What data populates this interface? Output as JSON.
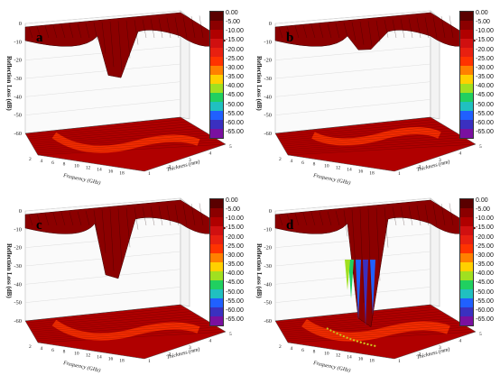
{
  "colorbar": {
    "ticks": [
      "0.00",
      "-5.00",
      "-10.00",
      "-15.00",
      "-20.00",
      "-25.00",
      "-30.00",
      "-35.00",
      "-40.00",
      "-45.00",
      "-50.00",
      "-55.00",
      "-60.00",
      "-65.00"
    ],
    "colors": [
      "#5a0000",
      "#8b0000",
      "#b00000",
      "#d01010",
      "#e82010",
      "#ff3300",
      "#ff8000",
      "#ffd000",
      "#a0e020",
      "#20d060",
      "#20c0c0",
      "#2060ff",
      "#3a30c0",
      "#7a10a0"
    ]
  },
  "zaxis_label": "Reflection Loss (dB)",
  "zaxis_ticks": [
    "0",
    "-10",
    "-20",
    "-30",
    "-40",
    "-50",
    "-60"
  ],
  "xaxis_label": "Frequency (GHz)",
  "yaxis_label": "Thickness (mm)",
  "freq_ticks": [
    "2",
    "4",
    "6",
    "8",
    "10",
    "12",
    "14",
    "16",
    "18"
  ],
  "thick_ticks": [
    "1",
    "2",
    "3",
    "4",
    "5"
  ],
  "chart_data": [
    {
      "type": "surface3d",
      "panel": "a",
      "zlabel": "Reflection Loss (dB)",
      "xlabel": "Frequency (GHz)",
      "ylabel": "Thickness (mm)",
      "zlim": [
        -65,
        0
      ],
      "min_rl": -25,
      "colorbar_range": [
        -65,
        0
      ]
    },
    {
      "type": "surface3d",
      "panel": "b",
      "zlabel": "Reflection Loss (dB)",
      "xlabel": "Frequency (GHz)",
      "ylabel": "Thickness (mm)",
      "zlim": [
        -65,
        0
      ],
      "min_rl": -8,
      "colorbar_range": [
        -65,
        0
      ]
    },
    {
      "type": "surface3d",
      "panel": "c",
      "zlabel": "Reflection Loss (dB)",
      "xlabel": "Frequency (GHz)",
      "ylabel": "Thickness (mm)",
      "zlim": [
        -65,
        0
      ],
      "min_rl": -33,
      "colorbar_range": [
        -65,
        0
      ]
    },
    {
      "type": "surface3d",
      "panel": "d",
      "zlabel": "Reflection Loss (dB)",
      "xlabel": "Frequency (GHz)",
      "ylabel": "Thickness (mm)",
      "zlim": [
        -65,
        0
      ],
      "min_rl": -62,
      "colorbar_range": [
        -65,
        0
      ]
    }
  ]
}
